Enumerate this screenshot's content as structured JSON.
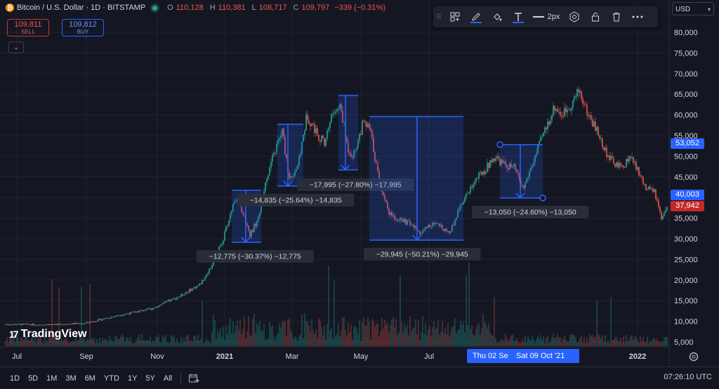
{
  "header": {
    "title": "Bitcoin / U.S. Dollar · 1D · BITSTAMP",
    "coin_glyph": "₿",
    "ohlc": {
      "o_label": "O",
      "o": "110,128",
      "h_label": "H",
      "h": "110,381",
      "l_label": "L",
      "l": "108,717",
      "c_label": "C",
      "c": "109,797",
      "change": "−339 (−0.31%)"
    }
  },
  "trade": {
    "sell_price": "109,811",
    "sell_label": "SELL",
    "buy_price": "109,812",
    "buy_label": "BUY"
  },
  "currency": "USD",
  "toolbar": {
    "icons": [
      "drag-grip-icon",
      "templates-icon",
      "pencil-icon",
      "fill-bucket-icon",
      "text-icon",
      "line-width-icon",
      "settings-icon",
      "lock-icon",
      "trash-icon",
      "more-icon"
    ],
    "line_width_label": "2px"
  },
  "price_axis": [
    "80,000",
    "75,000",
    "70,000",
    "65,000",
    "60,000",
    "55,000",
    "50,000",
    "45,000",
    "40,000",
    "35,000",
    "30,000",
    "25,000",
    "20,000",
    "15,000",
    "10,000",
    "5,000"
  ],
  "price_badges": [
    {
      "value": "53,052",
      "color": "#2962ff"
    },
    {
      "value": "40,003",
      "color": "#2962ff"
    },
    {
      "value": "37,942",
      "color": "#c62828"
    }
  ],
  "time_axis": [
    {
      "label": "Jul",
      "bold": false
    },
    {
      "label": "Sep",
      "bold": false
    },
    {
      "label": "Nov",
      "bold": false
    },
    {
      "label": "2021",
      "bold": true
    },
    {
      "label": "Mar",
      "bold": false
    },
    {
      "label": "May",
      "bold": false
    },
    {
      "label": "Jul",
      "bold": false
    },
    {
      "label": "2022",
      "bold": true
    }
  ],
  "date_highlights": [
    "Thu 02 Se",
    "Sat 09 Oct '21"
  ],
  "measurements": [
    {
      "label": "−12,775 (−30.37%) −12,775"
    },
    {
      "label": "−14,835 (−25.64%) −14,835"
    },
    {
      "label": "−17,995 (−27.80%) −17,995"
    },
    {
      "label": "−29,945 (−50.21%) −29,945"
    },
    {
      "label": "−13,050 (−24.60%) −13,050"
    }
  ],
  "brand": "TradingView",
  "brand_mark": "17",
  "ranges": [
    "1D",
    "5D",
    "1M",
    "3M",
    "6M",
    "YTD",
    "1Y",
    "5Y",
    "All"
  ],
  "clock": "07:26:10 UTC",
  "colors": {
    "background": "#141722",
    "up": "#26a69a",
    "down": "#ef5350",
    "accent": "#2962ff",
    "measure_fill": "rgba(41,98,255,0.2)"
  }
}
